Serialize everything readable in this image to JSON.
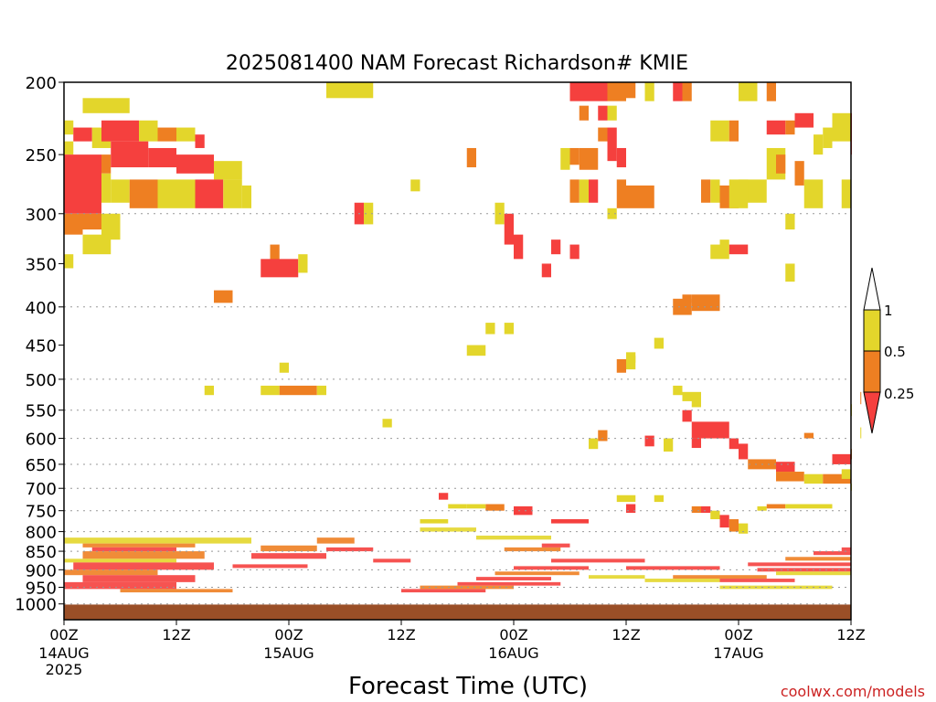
{
  "chart_data": {
    "type": "heatmap",
    "title": "2025081400 NAM Forecast Richardson# KMIE",
    "xlabel": "Forecast Time (UTC)",
    "ylabel": "",
    "credit": "coolwx.com/models",
    "y_axis": {
      "scale": "log-pressure",
      "range": [
        1050,
        200
      ],
      "ticks": [
        200,
        250,
        300,
        350,
        400,
        450,
        500,
        550,
        600,
        650,
        700,
        750,
        800,
        850,
        900,
        950,
        1000
      ],
      "gridlines": [
        300,
        400,
        500,
        550,
        600,
        650,
        700,
        750,
        800,
        850,
        900,
        950,
        1000
      ]
    },
    "x_axis": {
      "range_hours": [
        0,
        84
      ],
      "ticks": [
        {
          "hour": 0,
          "label": "00Z",
          "date": "14AUG",
          "year": "2025"
        },
        {
          "hour": 12,
          "label": "12Z",
          "date": "",
          "year": ""
        },
        {
          "hour": 24,
          "label": "00Z",
          "date": "15AUG",
          "year": ""
        },
        {
          "hour": 36,
          "label": "12Z",
          "date": "",
          "year": ""
        },
        {
          "hour": 48,
          "label": "00Z",
          "date": "16AUG",
          "year": ""
        },
        {
          "hour": 60,
          "label": "12Z",
          "date": "",
          "year": ""
        },
        {
          "hour": 72,
          "label": "00Z",
          "date": "17AUG",
          "year": ""
        },
        {
          "hour": 84,
          "label": "12Z",
          "date": "",
          "year": ""
        }
      ]
    },
    "legend": {
      "placement": "right",
      "levels": [
        "1",
        "0.5",
        "0.25"
      ],
      "bins": [
        {
          "range": "> 1",
          "color": "#ffffff"
        },
        {
          "range": "0.5–1",
          "color": "#e3d62b"
        },
        {
          "range": "0.25–0.5",
          "color": "#ee7f22"
        },
        {
          "range": "< 0.25",
          "color": "#f5403e"
        }
      ]
    },
    "ground_color": "#9a4f27",
    "ground_level_hpa": 1002,
    "colors": {
      "Y": "#e3d62b",
      "O": "#ee7f22",
      "R": "#f5403e"
    },
    "cells": [
      [
        2,
        6,
        220,
        210,
        "Y"
      ],
      [
        6,
        7,
        220,
        210,
        "Y"
      ],
      [
        0,
        1,
        235,
        225,
        "Y"
      ],
      [
        1,
        3,
        240,
        230,
        "R"
      ],
      [
        3,
        5,
        245,
        230,
        "Y"
      ],
      [
        4,
        8,
        240,
        225,
        "R"
      ],
      [
        8,
        10,
        240,
        225,
        "Y"
      ],
      [
        10,
        12,
        240,
        230,
        "O"
      ],
      [
        12,
        14,
        240,
        230,
        "Y"
      ],
      [
        14,
        15,
        245,
        235,
        "R"
      ],
      [
        0,
        1,
        250,
        240,
        "Y"
      ],
      [
        0,
        4,
        300,
        250,
        "R"
      ],
      [
        4,
        5,
        265,
        250,
        "O"
      ],
      [
        5,
        9,
        260,
        240,
        "R"
      ],
      [
        9,
        12,
        260,
        245,
        "R"
      ],
      [
        12,
        16,
        265,
        250,
        "R"
      ],
      [
        16,
        19,
        270,
        255,
        "Y"
      ],
      [
        4,
        5,
        290,
        265,
        "Y"
      ],
      [
        5,
        7,
        290,
        270,
        "Y"
      ],
      [
        7,
        10,
        295,
        270,
        "O"
      ],
      [
        10,
        14,
        295,
        270,
        "Y"
      ],
      [
        14,
        17,
        295,
        270,
        "R"
      ],
      [
        17,
        19,
        295,
        270,
        "Y"
      ],
      [
        19,
        20,
        295,
        275,
        "Y"
      ],
      [
        0,
        2,
        320,
        300,
        "O"
      ],
      [
        2,
        4,
        315,
        300,
        "O"
      ],
      [
        4,
        6,
        325,
        300,
        "Y"
      ],
      [
        2,
        5,
        340,
        320,
        "Y"
      ],
      [
        0,
        1,
        355,
        340,
        "Y"
      ],
      [
        28,
        33,
        210,
        200,
        "Y"
      ],
      [
        37,
        38,
        280,
        270,
        "Y"
      ],
      [
        31,
        32,
        310,
        290,
        "R"
      ],
      [
        32,
        33,
        310,
        290,
        "Y"
      ],
      [
        22,
        23,
        350,
        330,
        "O"
      ],
      [
        21,
        25,
        365,
        345,
        "R"
      ],
      [
        25,
        26,
        360,
        340,
        "Y"
      ],
      [
        16,
        18,
        395,
        380,
        "O"
      ],
      [
        23,
        24,
        490,
        475,
        "Y"
      ],
      [
        15,
        16,
        525,
        510,
        "Y"
      ],
      [
        21,
        23,
        525,
        510,
        "Y"
      ],
      [
        23,
        27,
        525,
        510,
        "O"
      ],
      [
        27,
        28,
        525,
        510,
        "Y"
      ],
      [
        43,
        44,
        260,
        245,
        "O"
      ],
      [
        46,
        47,
        310,
        290,
        "Y"
      ],
      [
        47,
        48,
        330,
        300,
        "R"
      ],
      [
        48,
        49,
        345,
        320,
        "R"
      ],
      [
        52,
        53,
        340,
        325,
        "R"
      ],
      [
        51,
        52,
        365,
        350,
        "R"
      ],
      [
        45,
        46,
        435,
        420,
        "Y"
      ],
      [
        47,
        48,
        435,
        420,
        "Y"
      ],
      [
        43,
        45,
        465,
        450,
        "Y"
      ],
      [
        34,
        35,
        580,
        565,
        "Y"
      ],
      [
        54,
        58,
        212,
        200,
        "R"
      ],
      [
        58,
        60,
        212,
        200,
        "O"
      ],
      [
        60,
        61,
        210,
        200,
        "O"
      ],
      [
        62,
        63,
        212,
        200,
        "Y"
      ],
      [
        65,
        66,
        212,
        200,
        "R"
      ],
      [
        66,
        67,
        212,
        200,
        "O"
      ],
      [
        55,
        56,
        225,
        215,
        "O"
      ],
      [
        57,
        58,
        225,
        215,
        "R"
      ],
      [
        58,
        59,
        225,
        215,
        "Y"
      ],
      [
        57,
        58,
        240,
        230,
        "O"
      ],
      [
        58,
        59,
        255,
        230,
        "R"
      ],
      [
        59,
        60,
        260,
        245,
        "R"
      ],
      [
        53,
        54,
        262,
        245,
        "Y"
      ],
      [
        54,
        55,
        258,
        245,
        "O"
      ],
      [
        55,
        57,
        262,
        245,
        "O"
      ],
      [
        54,
        55,
        290,
        270,
        "O"
      ],
      [
        55,
        56,
        290,
        270,
        "Y"
      ],
      [
        56,
        57,
        290,
        270,
        "R"
      ],
      [
        59,
        60,
        295,
        270,
        "O"
      ],
      [
        60,
        63,
        295,
        275,
        "O"
      ],
      [
        58,
        59,
        305,
        295,
        "Y"
      ],
      [
        54,
        55,
        345,
        330,
        "R"
      ],
      [
        60,
        61,
        475,
        460,
        "Y"
      ],
      [
        59,
        60,
        490,
        470,
        "O"
      ],
      [
        60,
        61,
        485,
        465,
        "Y"
      ],
      [
        56,
        57,
        620,
        600,
        "Y"
      ],
      [
        57,
        58,
        605,
        585,
        "O"
      ],
      [
        72,
        74,
        212,
        200,
        "Y"
      ],
      [
        75,
        76,
        212,
        200,
        "O"
      ],
      [
        69,
        71,
        240,
        225,
        "Y"
      ],
      [
        71,
        72,
        240,
        225,
        "O"
      ],
      [
        75,
        77,
        235,
        225,
        "R"
      ],
      [
        77,
        78,
        235,
        225,
        "O"
      ],
      [
        78,
        80,
        230,
        220,
        "R"
      ],
      [
        80,
        81,
        250,
        235,
        "Y"
      ],
      [
        81,
        82,
        245,
        230,
        "Y"
      ],
      [
        82,
        84,
        240,
        220,
        "Y"
      ],
      [
        84,
        85,
        250,
        220,
        "R"
      ],
      [
        75,
        77,
        270,
        245,
        "Y"
      ],
      [
        76,
        77,
        265,
        250,
        "O"
      ],
      [
        78,
        79,
        275,
        255,
        "O"
      ],
      [
        72,
        75,
        290,
        270,
        "Y"
      ],
      [
        70,
        72,
        295,
        275,
        "O"
      ],
      [
        68,
        69,
        290,
        270,
        "O"
      ],
      [
        69,
        70,
        290,
        270,
        "Y"
      ],
      [
        71,
        73,
        295,
        270,
        "Y"
      ],
      [
        79,
        81,
        295,
        270,
        "Y"
      ],
      [
        83,
        84,
        295,
        270,
        "Y"
      ],
      [
        77,
        78,
        315,
        300,
        "Y"
      ],
      [
        69,
        71,
        345,
        330,
        "Y"
      ],
      [
        71,
        73,
        340,
        330,
        "R"
      ],
      [
        70,
        71,
        335,
        325,
        "Y"
      ],
      [
        77,
        78,
        370,
        350,
        "Y"
      ],
      [
        67,
        70,
        405,
        385,
        "O"
      ],
      [
        65,
        67,
        410,
        390,
        "O"
      ],
      [
        66,
        67,
        395,
        385,
        "O"
      ],
      [
        63,
        64,
        455,
        440,
        "Y"
      ],
      [
        65,
        66,
        525,
        510,
        "Y"
      ],
      [
        66,
        68,
        535,
        520,
        "Y"
      ],
      [
        67,
        68,
        545,
        530,
        "Y"
      ],
      [
        66,
        67,
        570,
        550,
        "R"
      ],
      [
        67,
        71,
        600,
        570,
        "R"
      ],
      [
        71,
        72,
        620,
        600,
        "R"
      ],
      [
        72,
        73,
        640,
        610,
        "R"
      ],
      [
        73,
        76,
        660,
        640,
        "O"
      ],
      [
        76,
        78,
        665,
        645,
        "R"
      ],
      [
        76,
        79,
        685,
        665,
        "O"
      ],
      [
        79,
        81,
        690,
        670,
        "Y"
      ],
      [
        81,
        84,
        690,
        670,
        "O"
      ],
      [
        84,
        85,
        705,
        690,
        "Y"
      ],
      [
        84,
        85,
        640,
        620,
        "O"
      ],
      [
        82,
        84,
        650,
        630,
        "R"
      ],
      [
        83,
        85,
        680,
        660,
        "Y"
      ],
      [
        79,
        80,
        600,
        590,
        "O"
      ],
      [
        85,
        86,
        600,
        580,
        "Y"
      ],
      [
        84,
        85,
        560,
        540,
        "Y"
      ],
      [
        85,
        86,
        540,
        520,
        "O"
      ],
      [
        67,
        68,
        618,
        600,
        "R"
      ],
      [
        62,
        63,
        615,
        595,
        "R"
      ],
      [
        64,
        65,
        625,
        600,
        "Y"
      ],
      [
        60,
        61,
        755,
        735,
        "R"
      ],
      [
        63,
        64,
        730,
        715,
        "Y"
      ],
      [
        67,
        68,
        755,
        740,
        "O"
      ],
      [
        68,
        69,
        755,
        740,
        "R"
      ],
      [
        69,
        70,
        770,
        750,
        "Y"
      ],
      [
        70,
        71,
        790,
        760,
        "R"
      ],
      [
        71,
        72,
        800,
        770,
        "O"
      ],
      [
        72,
        73,
        805,
        780,
        "Y"
      ],
      [
        74,
        75,
        750,
        740,
        "Y"
      ],
      [
        75,
        77,
        745,
        735,
        "O"
      ],
      [
        77,
        82,
        745,
        735,
        "Y"
      ],
      [
        52,
        56,
        780,
        770,
        "R"
      ],
      [
        59,
        61,
        730,
        715,
        "Y"
      ],
      [
        48,
        50,
        760,
        740,
        "R"
      ],
      [
        45,
        47,
        750,
        735,
        "O"
      ],
      [
        43,
        45,
        745,
        735,
        "Y"
      ],
      [
        41,
        43,
        745,
        735,
        "Y"
      ],
      [
        40,
        41,
        725,
        710,
        "R"
      ],
      [
        38,
        41,
        780,
        770,
        "Y"
      ]
    ],
    "bands": [
      [
        0,
        20,
        830,
        815,
        "Y"
      ],
      [
        2,
        14,
        840,
        830,
        "O"
      ],
      [
        3,
        12,
        850,
        840,
        "R"
      ],
      [
        2,
        15,
        870,
        850,
        "O"
      ],
      [
        0,
        12,
        880,
        870,
        "Y"
      ],
      [
        1,
        16,
        900,
        880,
        "R"
      ],
      [
        0,
        10,
        915,
        900,
        "O"
      ],
      [
        2,
        14,
        935,
        915,
        "R"
      ],
      [
        0,
        12,
        955,
        935,
        "R"
      ],
      [
        6,
        18,
        965,
        955,
        "O"
      ],
      [
        18,
        26,
        895,
        885,
        "R"
      ],
      [
        20,
        28,
        870,
        855,
        "R"
      ],
      [
        21,
        27,
        850,
        835,
        "O"
      ],
      [
        27,
        31,
        830,
        815,
        "O"
      ],
      [
        28,
        33,
        850,
        840,
        "R"
      ],
      [
        33,
        37,
        880,
        870,
        "R"
      ],
      [
        36,
        45,
        965,
        955,
        "R"
      ],
      [
        38,
        48,
        955,
        945,
        "O"
      ],
      [
        42,
        53,
        945,
        935,
        "R"
      ],
      [
        44,
        52,
        930,
        920,
        "R"
      ],
      [
        46,
        55,
        915,
        905,
        "O"
      ],
      [
        48,
        56,
        900,
        890,
        "R"
      ],
      [
        52,
        62,
        880,
        870,
        "R"
      ],
      [
        60,
        70,
        900,
        890,
        "R"
      ],
      [
        65,
        75,
        925,
        915,
        "O"
      ],
      [
        70,
        78,
        935,
        925,
        "R"
      ],
      [
        73,
        85,
        890,
        880,
        "R"
      ],
      [
        77,
        86,
        875,
        865,
        "O"
      ],
      [
        80,
        86,
        860,
        850,
        "R"
      ],
      [
        83,
        86,
        850,
        840,
        "R"
      ],
      [
        47,
        53,
        850,
        840,
        "O"
      ],
      [
        51,
        54,
        840,
        830,
        "R"
      ],
      [
        56,
        62,
        925,
        915,
        "Y"
      ],
      [
        62,
        70,
        935,
        925,
        "Y"
      ],
      [
        70,
        82,
        955,
        945,
        "Y"
      ],
      [
        74,
        86,
        905,
        895,
        "R"
      ],
      [
        76,
        85,
        915,
        905,
        "Y"
      ],
      [
        38,
        44,
        800,
        790,
        "Y"
      ],
      [
        44,
        52,
        820,
        810,
        "Y"
      ]
    ]
  }
}
